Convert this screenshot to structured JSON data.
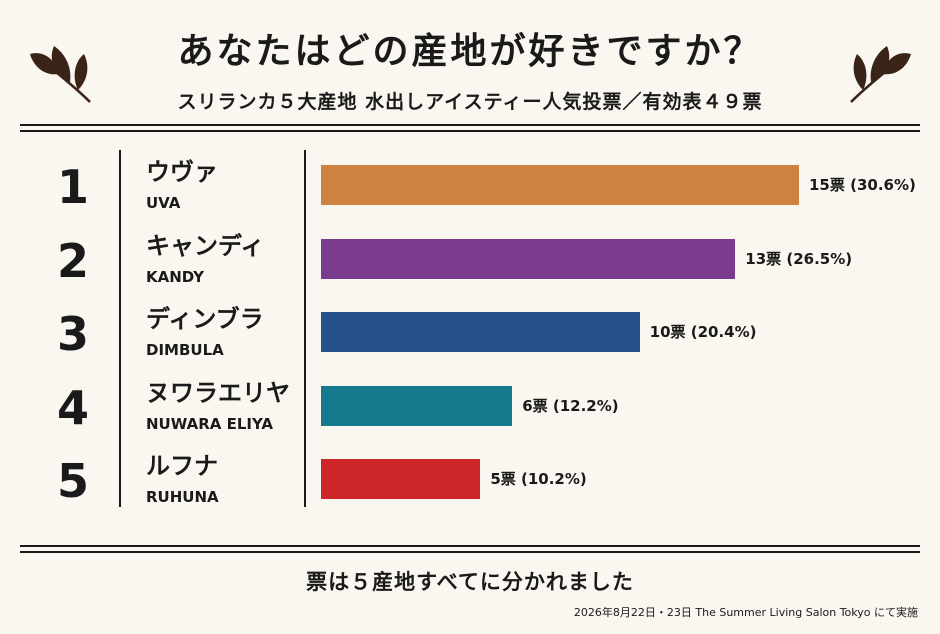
{
  "header": {
    "title": "あなたはどの産地が好きですか？",
    "subtitle": "スリランカ５大産地 水出しアイスティー人気投票／有効表４９票"
  },
  "footer": {
    "summary": "票は５産地すべてに分かれました",
    "note": "2026年8月22日・23日 The Summer Living Salon Tokyo にて実施"
  },
  "colors": {
    "background": "#faf6f0",
    "ink": "#1a1a1a"
  },
  "icons": {
    "left": "tea-leaf-icon",
    "right": "tea-leaf-icon"
  },
  "chart_data": {
    "type": "bar",
    "orientation": "horizontal",
    "total_votes": 49,
    "xlim": [
      0,
      15
    ],
    "grid": false,
    "categories": [
      {
        "rank": "1",
        "name_jp": "ウヴァ",
        "name_en": "UVA",
        "value": 15,
        "label": "15票 (30.6%)",
        "color": "#cd8240"
      },
      {
        "rank": "2",
        "name_jp": "キャンディ",
        "name_en": "KANDY",
        "value": 13,
        "label": "13票 (26.5%)",
        "color": "#7a3b8f"
      },
      {
        "rank": "3",
        "name_jp": "ディンブラ",
        "name_en": "DIMBULA",
        "value": 10,
        "label": "10票 (20.4%)",
        "color": "#26528a"
      },
      {
        "rank": "4",
        "name_jp": "ヌワラエリヤ",
        "name_en": "NUWARA ELIYA",
        "value": 6,
        "label": "6票 (12.2%)",
        "color": "#167a8e"
      },
      {
        "rank": "5",
        "name_jp": "ルフナ",
        "name_en": "RUHUNA",
        "value": 5,
        "label": "5票 (10.2%)",
        "color": "#cc2629"
      }
    ]
  }
}
